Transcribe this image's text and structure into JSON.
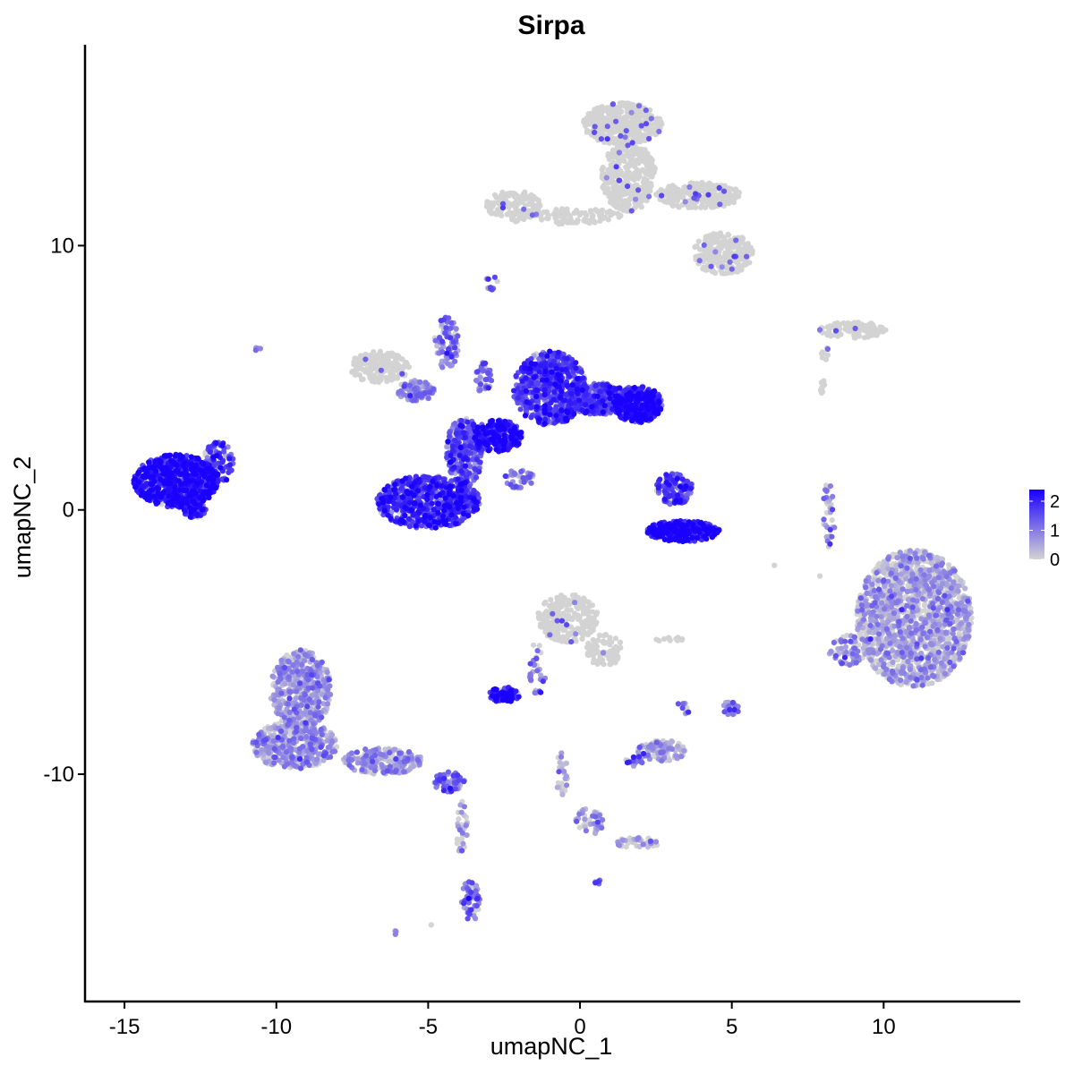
{
  "chart_data": {
    "type": "scatter",
    "title": "Sirpa",
    "xlabel": "umapNC_1",
    "ylabel": "umapNC_2",
    "xlim": [
      -16.3,
      14.5
    ],
    "ylim": [
      -18.6,
      17.6
    ],
    "x_ticks": [
      -15,
      -10,
      -5,
      0,
      5,
      10
    ],
    "x_tick_labels": [
      "-15",
      "-10",
      "-5",
      "0",
      "5",
      "10"
    ],
    "y_ticks": [
      -10,
      0,
      10
    ],
    "y_tick_labels": [
      "-10",
      "0",
      "10"
    ],
    "grid": false,
    "colors": {
      "low": "#d3d3d3",
      "high": "#1a00ff"
    },
    "legend": {
      "position": "right",
      "type": "colorbar",
      "range": [
        0,
        2.4
      ],
      "ticks": [
        0,
        1,
        2
      ],
      "tick_labels": [
        "0",
        "1",
        "2"
      ]
    },
    "clusters": [
      {
        "cx": -13.3,
        "cy": 1.1,
        "rx": 1.4,
        "ry": 1.0,
        "n": 700,
        "expr": 2.1
      },
      {
        "cx": -11.9,
        "cy": 1.8,
        "rx": 0.5,
        "ry": 0.8,
        "n": 90,
        "expr": 1.6
      },
      {
        "cx": -12.7,
        "cy": 0.0,
        "rx": 0.4,
        "ry": 0.3,
        "n": 50,
        "expr": 1.9
      },
      {
        "cx": -10.6,
        "cy": 6.1,
        "rx": 0.1,
        "ry": 0.1,
        "n": 4,
        "expr": 0.9
      },
      {
        "cx": -6.6,
        "cy": 5.4,
        "rx": 1.0,
        "ry": 0.6,
        "n": 180,
        "expr": 0.2
      },
      {
        "cx": -5.4,
        "cy": 4.5,
        "rx": 0.6,
        "ry": 0.4,
        "n": 90,
        "expr": 0.8
      },
      {
        "cx": -5.0,
        "cy": 0.3,
        "rx": 1.7,
        "ry": 1.0,
        "n": 650,
        "expr": 1.8
      },
      {
        "cx": -3.8,
        "cy": 2.2,
        "rx": 0.6,
        "ry": 1.3,
        "n": 260,
        "expr": 1.4
      },
      {
        "cx": -2.7,
        "cy": 2.8,
        "rx": 0.8,
        "ry": 0.6,
        "n": 250,
        "expr": 2.0
      },
      {
        "cx": -4.4,
        "cy": 6.3,
        "rx": 0.4,
        "ry": 1.0,
        "n": 80,
        "expr": 1.0
      },
      {
        "cx": -3.2,
        "cy": 5.0,
        "rx": 0.3,
        "ry": 0.6,
        "n": 40,
        "expr": 1.0
      },
      {
        "cx": -2.0,
        "cy": 1.2,
        "rx": 0.5,
        "ry": 0.4,
        "n": 40,
        "expr": 1.0
      },
      {
        "cx": -1.0,
        "cy": 4.6,
        "rx": 1.2,
        "ry": 1.4,
        "n": 650,
        "expr": 1.6
      },
      {
        "cx": 0.6,
        "cy": 4.2,
        "rx": 1.0,
        "ry": 0.6,
        "n": 320,
        "expr": 1.5
      },
      {
        "cx": 1.9,
        "cy": 4.0,
        "rx": 0.8,
        "ry": 0.7,
        "n": 380,
        "expr": 2.0
      },
      {
        "cx": 3.1,
        "cy": 0.8,
        "rx": 0.6,
        "ry": 0.6,
        "n": 130,
        "expr": 1.6
      },
      {
        "cx": 3.4,
        "cy": -0.8,
        "rx": 1.2,
        "ry": 0.4,
        "n": 300,
        "expr": 2.1
      },
      {
        "cx": -2.2,
        "cy": 11.5,
        "rx": 0.9,
        "ry": 0.6,
        "n": 140,
        "expr": 0.1
      },
      {
        "cx": -0.2,
        "cy": 11.1,
        "rx": 1.6,
        "ry": 0.3,
        "n": 100,
        "expr": 0.1
      },
      {
        "cx": 1.4,
        "cy": 14.6,
        "rx": 1.3,
        "ry": 0.8,
        "n": 450,
        "expr": 0.1
      },
      {
        "cx": 1.6,
        "cy": 12.6,
        "rx": 0.9,
        "ry": 1.3,
        "n": 350,
        "expr": 0.1
      },
      {
        "cx": 3.9,
        "cy": 11.9,
        "rx": 1.4,
        "ry": 0.5,
        "n": 260,
        "expr": 0.1
      },
      {
        "cx": 4.7,
        "cy": 9.7,
        "rx": 1.0,
        "ry": 0.8,
        "n": 260,
        "expr": 0.1
      },
      {
        "cx": -2.9,
        "cy": 8.6,
        "rx": 0.2,
        "ry": 0.3,
        "n": 12,
        "expr": 1.0
      },
      {
        "cx": 9.0,
        "cy": 6.8,
        "rx": 1.2,
        "ry": 0.3,
        "n": 120,
        "expr": 0.1
      },
      {
        "cx": 8.2,
        "cy": 5.9,
        "rx": 0.3,
        "ry": 0.3,
        "n": 10,
        "expr": 0.1
      },
      {
        "cx": 8.0,
        "cy": 4.6,
        "rx": 0.1,
        "ry": 0.3,
        "n": 8,
        "expr": 0.1
      },
      {
        "cx": 8.2,
        "cy": -0.2,
        "rx": 0.2,
        "ry": 1.3,
        "n": 40,
        "expr": 0.6
      },
      {
        "cx": 11.0,
        "cy": -4.1,
        "rx": 1.9,
        "ry": 2.6,
        "n": 1500,
        "expr": 0.35
      },
      {
        "cx": 8.8,
        "cy": -5.3,
        "rx": 0.6,
        "ry": 0.6,
        "n": 60,
        "expr": 0.8
      },
      {
        "cx": -0.4,
        "cy": -4.1,
        "rx": 1.0,
        "ry": 0.9,
        "n": 250,
        "expr": 0.1
      },
      {
        "cx": 0.8,
        "cy": -5.3,
        "rx": 0.6,
        "ry": 0.6,
        "n": 80,
        "expr": 0.1
      },
      {
        "cx": -1.4,
        "cy": -6.0,
        "rx": 0.3,
        "ry": 1.0,
        "n": 30,
        "expr": 1.0
      },
      {
        "cx": -2.5,
        "cy": -7.0,
        "rx": 0.5,
        "ry": 0.3,
        "n": 80,
        "expr": 2.0
      },
      {
        "cx": -9.2,
        "cy": -6.8,
        "rx": 1.0,
        "ry": 1.5,
        "n": 500,
        "expr": 0.5
      },
      {
        "cx": -9.4,
        "cy": -8.9,
        "rx": 1.4,
        "ry": 0.9,
        "n": 400,
        "expr": 0.55
      },
      {
        "cx": -6.5,
        "cy": -9.5,
        "rx": 1.3,
        "ry": 0.5,
        "n": 200,
        "expr": 0.6
      },
      {
        "cx": -4.3,
        "cy": -10.3,
        "rx": 0.5,
        "ry": 0.4,
        "n": 60,
        "expr": 1.2
      },
      {
        "cx": -3.9,
        "cy": -12.0,
        "rx": 0.2,
        "ry": 1.0,
        "n": 30,
        "expr": 0.3
      },
      {
        "cx": -3.6,
        "cy": -14.8,
        "rx": 0.3,
        "ry": 0.8,
        "n": 60,
        "expr": 1.0
      },
      {
        "cx": 2.7,
        "cy": -9.1,
        "rx": 0.8,
        "ry": 0.4,
        "n": 110,
        "expr": 0.4
      },
      {
        "cx": 1.8,
        "cy": -9.5,
        "rx": 0.3,
        "ry": 0.2,
        "n": 20,
        "expr": 1.2
      },
      {
        "cx": 5.0,
        "cy": -7.5,
        "rx": 0.3,
        "ry": 0.3,
        "n": 25,
        "expr": 1.0
      },
      {
        "cx": 3.4,
        "cy": -7.5,
        "rx": 0.2,
        "ry": 0.3,
        "n": 10,
        "expr": 0.8
      },
      {
        "cx": 2.9,
        "cy": -4.9,
        "rx": 0.5,
        "ry": 0.1,
        "n": 12,
        "expr": 0.1
      },
      {
        "cx": -0.6,
        "cy": -10.0,
        "rx": 0.2,
        "ry": 0.8,
        "n": 25,
        "expr": 0.4
      },
      {
        "cx": 0.3,
        "cy": -11.8,
        "rx": 0.5,
        "ry": 0.5,
        "n": 40,
        "expr": 0.6
      },
      {
        "cx": 1.9,
        "cy": -12.6,
        "rx": 0.8,
        "ry": 0.2,
        "n": 40,
        "expr": 0.3
      },
      {
        "cx": 0.6,
        "cy": -14.1,
        "rx": 0.1,
        "ry": 0.1,
        "n": 6,
        "expr": 1.4
      },
      {
        "cx": -6.1,
        "cy": -16.0,
        "rx": 0.1,
        "ry": 0.1,
        "n": 4,
        "expr": 0.9
      },
      {
        "cx": 6.4,
        "cy": -2.1,
        "rx": 0.0,
        "ry": 0.0,
        "n": 1,
        "expr": 0.0
      },
      {
        "cx": 7.9,
        "cy": -2.5,
        "rx": 0.0,
        "ry": 0.0,
        "n": 1,
        "expr": 0.0
      },
      {
        "cx": -4.9,
        "cy": -15.7,
        "rx": 0.0,
        "ry": 0.0,
        "n": 1,
        "expr": 0.0
      }
    ]
  }
}
